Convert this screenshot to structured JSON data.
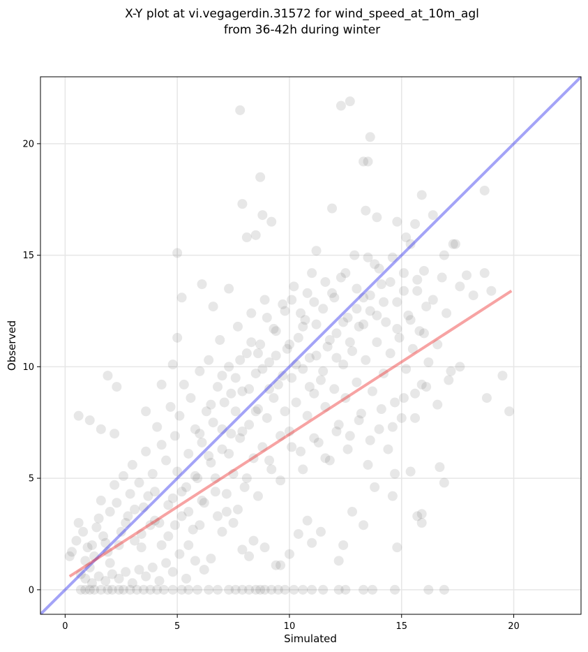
{
  "chart_data": {
    "type": "scatter",
    "title": [
      "X-Y plot at vi.vegagerdin.31572 for wind_speed_at_10m_agl",
      "from 36-42h during winter"
    ],
    "xlabel": "Simulated",
    "ylabel": "Observed",
    "xlim": [
      -1.1,
      23
    ],
    "ylim": [
      -1.1,
      23
    ],
    "xticks": [
      0,
      5,
      10,
      15,
      20
    ],
    "yticks": [
      0,
      5,
      10,
      15,
      20
    ],
    "grid": true,
    "marker_color": "#444444",
    "marker_alpha": 0.13,
    "points": [
      [
        0.3,
        1.7
      ],
      [
        0.2,
        1.5
      ],
      [
        0.5,
        2.2
      ],
      [
        0.6,
        3.0
      ],
      [
        0.8,
        2.6
      ],
      [
        0.9,
        1.3
      ],
      [
        1.1,
        1.0
      ],
      [
        1.2,
        2.0
      ],
      [
        1.4,
        2.8
      ],
      [
        1.5,
        3.2
      ],
      [
        1.6,
        4.0
      ],
      [
        1.8,
        2.1
      ],
      [
        1.9,
        1.7
      ],
      [
        2.0,
        3.5
      ],
      [
        2.2,
        4.7
      ],
      [
        2.3,
        3.9
      ],
      [
        2.5,
        2.6
      ],
      [
        2.6,
        5.1
      ],
      [
        2.8,
        3.3
      ],
      [
        2.9,
        4.3
      ],
      [
        3.0,
        5.6
      ],
      [
        3.1,
        2.2
      ],
      [
        3.3,
        4.8
      ],
      [
        3.4,
        1.9
      ],
      [
        3.5,
        3.7
      ],
      [
        3.6,
        6.2
      ],
      [
        3.8,
        2.9
      ],
      [
        3.9,
        5.2
      ],
      [
        4.0,
        4.4
      ],
      [
        4.1,
        7.3
      ],
      [
        4.2,
        3.0
      ],
      [
        4.3,
        6.5
      ],
      [
        4.5,
        5.8
      ],
      [
        4.6,
        2.4
      ],
      [
        4.7,
        8.2
      ],
      [
        4.8,
        4.1
      ],
      [
        4.9,
        6.9
      ],
      [
        5.0,
        5.3
      ],
      [
        5.1,
        7.8
      ],
      [
        5.2,
        3.3
      ],
      [
        5.3,
        9.2
      ],
      [
        5.4,
        4.6
      ],
      [
        5.5,
        6.1
      ],
      [
        5.6,
        8.6
      ],
      [
        5.7,
        2.7
      ],
      [
        5.8,
        7.2
      ],
      [
        5.9,
        5.0
      ],
      [
        6.0,
        9.8
      ],
      [
        6.1,
        6.6
      ],
      [
        6.2,
        3.9
      ],
      [
        6.3,
        8.0
      ],
      [
        6.4,
        10.3
      ],
      [
        6.5,
        5.7
      ],
      [
        6.6,
        7.5
      ],
      [
        6.7,
        4.4
      ],
      [
        6.8,
        9.1
      ],
      [
        6.9,
        11.2
      ],
      [
        7.0,
        6.3
      ],
      [
        7.1,
        8.4
      ],
      [
        7.2,
        3.5
      ],
      [
        7.3,
        10.0
      ],
      [
        7.4,
        7.0
      ],
      [
        7.5,
        5.2
      ],
      [
        7.6,
        9.5
      ],
      [
        7.7,
        11.8
      ],
      [
        7.8,
        6.8
      ],
      [
        7.9,
        8.9
      ],
      [
        8.0,
        4.6
      ],
      [
        8.1,
        10.6
      ],
      [
        8.2,
        7.4
      ],
      [
        8.3,
        12.4
      ],
      [
        8.4,
        5.9
      ],
      [
        8.5,
        9.7
      ],
      [
        8.6,
        8.1
      ],
      [
        8.7,
        11.0
      ],
      [
        8.8,
        6.4
      ],
      [
        8.9,
        13.0
      ],
      [
        9.0,
        7.7
      ],
      [
        9.1,
        10.2
      ],
      [
        9.2,
        5.4
      ],
      [
        9.3,
        8.6
      ],
      [
        9.4,
        11.6
      ],
      [
        9.5,
        9.2
      ],
      [
        9.6,
        6.9
      ],
      [
        9.7,
        12.8
      ],
      [
        9.8,
        8.0
      ],
      [
        9.9,
        10.8
      ],
      [
        10.0,
        7.1
      ],
      [
        10.1,
        9.5
      ],
      [
        10.2,
        13.6
      ],
      [
        10.3,
        8.4
      ],
      [
        10.4,
        11.3
      ],
      [
        10.5,
        6.2
      ],
      [
        10.6,
        9.9
      ],
      [
        10.7,
        12.1
      ],
      [
        10.8,
        7.8
      ],
      [
        10.9,
        10.4
      ],
      [
        11.0,
        14.2
      ],
      [
        11.1,
        8.8
      ],
      [
        11.2,
        11.9
      ],
      [
        11.3,
        6.6
      ],
      [
        11.4,
        9.4
      ],
      [
        11.5,
        12.6
      ],
      [
        11.6,
        8.2
      ],
      [
        11.7,
        10.9
      ],
      [
        11.8,
        5.8
      ],
      [
        11.9,
        13.3
      ],
      [
        12.0,
        9.0
      ],
      [
        12.1,
        11.5
      ],
      [
        12.2,
        7.4
      ],
      [
        12.3,
        14.0
      ],
      [
        12.4,
        10.1
      ],
      [
        12.5,
        8.6
      ],
      [
        12.6,
        12.2
      ],
      [
        12.7,
        6.9
      ],
      [
        12.8,
        10.7
      ],
      [
        12.9,
        15.0
      ],
      [
        13.0,
        9.3
      ],
      [
        13.1,
        11.8
      ],
      [
        13.2,
        7.9
      ],
      [
        13.3,
        13.1
      ],
      [
        13.4,
        10.3
      ],
      [
        13.5,
        5.6
      ],
      [
        13.6,
        12.5
      ],
      [
        13.7,
        8.9
      ],
      [
        13.8,
        14.6
      ],
      [
        13.9,
        11.1
      ],
      [
        14.0,
        7.2
      ],
      [
        14.1,
        13.7
      ],
      [
        14.2,
        9.7
      ],
      [
        14.3,
        12.0
      ],
      [
        14.4,
        6.3
      ],
      [
        14.5,
        10.6
      ],
      [
        14.6,
        14.9
      ],
      [
        14.7,
        8.4
      ],
      [
        14.8,
        12.9
      ],
      [
        14.9,
        11.3
      ],
      [
        15.0,
        7.7
      ],
      [
        15.1,
        13.4
      ],
      [
        15.2,
        9.9
      ],
      [
        15.3,
        12.3
      ],
      [
        15.4,
        15.5
      ],
      [
        15.5,
        10.8
      ],
      [
        15.6,
        8.8
      ],
      [
        15.7,
        13.9
      ],
      [
        15.8,
        11.6
      ],
      [
        15.9,
        9.2
      ],
      [
        16.0,
        14.3
      ],
      [
        16.1,
        12.7
      ],
      [
        16.2,
        10.2
      ],
      [
        16.4,
        13.0
      ],
      [
        16.6,
        11.0
      ],
      [
        16.8,
        14.0
      ],
      [
        17.0,
        12.4
      ],
      [
        17.2,
        9.8
      ],
      [
        17.4,
        15.5
      ],
      [
        17.6,
        13.6
      ],
      [
        17.9,
        14.1
      ],
      [
        18.2,
        13.2
      ],
      [
        18.7,
        14.2
      ],
      [
        19.0,
        13.4
      ],
      [
        19.5,
        9.6
      ],
      [
        19.8,
        8.0
      ],
      [
        18.8,
        8.6
      ],
      [
        18.7,
        17.9
      ],
      [
        16.7,
        5.5
      ],
      [
        16.9,
        4.8
      ],
      [
        15.9,
        3.0
      ],
      [
        15.9,
        3.4
      ],
      [
        15.7,
        3.3
      ],
      [
        14.8,
        1.9
      ],
      [
        14.6,
        4.2
      ],
      [
        14.7,
        5.2
      ],
      [
        15.4,
        5.3
      ],
      [
        13.8,
        4.6
      ],
      [
        13.3,
        2.9
      ],
      [
        12.8,
        3.5
      ],
      [
        12.4,
        2.0
      ],
      [
        12.2,
        1.3
      ],
      [
        11.4,
        2.6
      ],
      [
        11.0,
        2.1
      ],
      [
        10.4,
        2.5
      ],
      [
        10.8,
        3.1
      ],
      [
        10.0,
        1.6
      ],
      [
        9.6,
        1.1
      ],
      [
        9.4,
        1.1
      ],
      [
        8.9,
        1.9
      ],
      [
        8.4,
        2.2
      ],
      [
        8.2,
        1.5
      ],
      [
        7.9,
        1.8
      ],
      [
        7.5,
        3.0
      ],
      [
        7.0,
        2.6
      ],
      [
        6.5,
        1.4
      ],
      [
        6.2,
        0.9
      ],
      [
        5.8,
        1.3
      ],
      [
        5.4,
        0.5
      ],
      [
        5.1,
        1.6
      ],
      [
        4.8,
        0.8
      ],
      [
        4.5,
        1.2
      ],
      [
        4.2,
        0.4
      ],
      [
        3.9,
        1.0
      ],
      [
        3.6,
        0.6
      ],
      [
        3.3,
        0.9
      ],
      [
        3.0,
        0.3
      ],
      [
        2.7,
        0.8
      ],
      [
        2.4,
        0.5
      ],
      [
        2.1,
        0.7
      ],
      [
        1.8,
        0.4
      ],
      [
        1.5,
        0.6
      ],
      [
        1.2,
        0.3
      ],
      [
        0.9,
        0.5
      ],
      [
        0.7,
        0.7
      ],
      [
        0.6,
        7.8
      ],
      [
        1.1,
        7.6
      ],
      [
        1.6,
        7.2
      ],
      [
        1.9,
        9.6
      ],
      [
        2.3,
        9.1
      ],
      [
        2.2,
        7.0
      ],
      [
        3.6,
        8.0
      ],
      [
        4.3,
        9.2
      ],
      [
        4.8,
        10.1
      ],
      [
        5.0,
        11.3
      ],
      [
        5.2,
        13.1
      ],
      [
        5.0,
        15.1
      ],
      [
        6.1,
        13.7
      ],
      [
        6.6,
        12.7
      ],
      [
        7.3,
        13.5
      ],
      [
        7.8,
        21.5
      ],
      [
        7.9,
        17.3
      ],
      [
        8.1,
        15.8
      ],
      [
        8.5,
        15.9
      ],
      [
        8.7,
        18.5
      ],
      [
        8.8,
        16.8
      ],
      [
        9.2,
        16.5
      ],
      [
        11.2,
        15.2
      ],
      [
        11.9,
        17.1
      ],
      [
        12.3,
        21.7
      ],
      [
        12.7,
        21.9
      ],
      [
        13.3,
        19.2
      ],
      [
        13.5,
        19.2
      ],
      [
        13.6,
        20.3
      ],
      [
        13.4,
        17.0
      ],
      [
        13.9,
        16.7
      ],
      [
        14.8,
        16.5
      ],
      [
        15.2,
        15.8
      ],
      [
        15.6,
        16.4
      ],
      [
        15.9,
        17.7
      ],
      [
        16.4,
        16.8
      ],
      [
        16.9,
        15.0
      ],
      [
        17.3,
        15.5
      ],
      [
        0.7,
        0
      ],
      [
        0.9,
        0
      ],
      [
        1.1,
        0
      ],
      [
        1.3,
        0
      ],
      [
        1.6,
        0
      ],
      [
        1.9,
        0
      ],
      [
        2.1,
        0
      ],
      [
        2.4,
        0
      ],
      [
        2.6,
        0
      ],
      [
        2.9,
        0
      ],
      [
        3.2,
        0
      ],
      [
        3.5,
        0
      ],
      [
        3.8,
        0
      ],
      [
        4.1,
        0
      ],
      [
        4.4,
        0
      ],
      [
        4.8,
        0
      ],
      [
        5.2,
        0
      ],
      [
        5.5,
        0
      ],
      [
        5.9,
        0
      ],
      [
        6.4,
        0
      ],
      [
        6.8,
        0
      ],
      [
        7.3,
        0
      ],
      [
        7.6,
        0
      ],
      [
        7.9,
        0
      ],
      [
        8.2,
        0
      ],
      [
        8.5,
        0
      ],
      [
        8.7,
        0
      ],
      [
        8.9,
        0
      ],
      [
        9.2,
        0
      ],
      [
        9.5,
        0
      ],
      [
        9.8,
        0
      ],
      [
        10.2,
        0
      ],
      [
        10.6,
        0
      ],
      [
        11.0,
        0
      ],
      [
        11.5,
        0
      ],
      [
        12.2,
        0
      ],
      [
        12.5,
        0
      ],
      [
        13.3,
        0
      ],
      [
        13.7,
        0
      ],
      [
        14.7,
        0
      ],
      [
        16.2,
        0
      ],
      [
        16.9,
        0
      ],
      [
        1.0,
        1.9
      ],
      [
        1.3,
        1.5
      ],
      [
        1.7,
        2.4
      ],
      [
        2.0,
        1.2
      ],
      [
        2.4,
        2.0
      ],
      [
        2.7,
        3.0
      ],
      [
        3.1,
        3.6
      ],
      [
        3.4,
        2.5
      ],
      [
        3.7,
        4.2
      ],
      [
        4.0,
        3.1
      ],
      [
        4.3,
        2.0
      ],
      [
        4.6,
        3.8
      ],
      [
        4.9,
        2.9
      ],
      [
        5.2,
        4.4
      ],
      [
        5.5,
        3.5
      ],
      [
        5.8,
        5.1
      ],
      [
        6.1,
        4.0
      ],
      [
        6.4,
        6.0
      ],
      [
        6.7,
        5.0
      ],
      [
        7.0,
        7.2
      ],
      [
        7.3,
        6.1
      ],
      [
        7.6,
        8.0
      ],
      [
        7.9,
        7.1
      ],
      [
        8.2,
        9.0
      ],
      [
        8.5,
        8.0
      ],
      [
        8.8,
        9.9
      ],
      [
        9.1,
        9.0
      ],
      [
        9.4,
        10.5
      ],
      [
        9.7,
        9.6
      ],
      [
        10.0,
        11.0
      ],
      [
        10.3,
        10.1
      ],
      [
        10.6,
        11.8
      ],
      [
        10.9,
        9.1
      ],
      [
        11.2,
        10.5
      ],
      [
        11.5,
        9.8
      ],
      [
        11.8,
        11.2
      ],
      [
        12.1,
        10.4
      ],
      [
        12.4,
        12.0
      ],
      [
        12.7,
        11.1
      ],
      [
        13.0,
        12.6
      ],
      [
        13.3,
        11.9
      ],
      [
        13.6,
        13.2
      ],
      [
        13.9,
        12.3
      ],
      [
        14.2,
        12.9
      ],
      [
        14.5,
        13.8
      ],
      [
        14.8,
        11.7
      ],
      [
        15.1,
        14.2
      ],
      [
        15.4,
        12.1
      ],
      [
        15.7,
        13.4
      ],
      [
        16.0,
        11.5
      ],
      [
        6.0,
        7.0
      ],
      [
        6.5,
        8.3
      ],
      [
        7.0,
        9.6
      ],
      [
        7.4,
        8.8
      ],
      [
        7.8,
        10.3
      ],
      [
        8.3,
        11.1
      ],
      [
        8.6,
        10.6
      ],
      [
        9.0,
        12.2
      ],
      [
        9.3,
        11.7
      ],
      [
        9.8,
        12.5
      ],
      [
        10.1,
        13.0
      ],
      [
        10.5,
        12.4
      ],
      [
        10.8,
        13.3
      ],
      [
        11.1,
        12.9
      ],
      [
        11.6,
        13.8
      ],
      [
        12.0,
        13.1
      ],
      [
        12.5,
        14.2
      ],
      [
        13.0,
        13.5
      ],
      [
        13.5,
        14.9
      ],
      [
        14.0,
        14.4
      ],
      [
        5.5,
        2.0
      ],
      [
        6.0,
        2.9
      ],
      [
        6.8,
        3.3
      ],
      [
        7.2,
        4.3
      ],
      [
        7.7,
        3.6
      ],
      [
        8.1,
        5.0
      ],
      [
        8.6,
        4.2
      ],
      [
        9.1,
        5.8
      ],
      [
        9.6,
        4.9
      ],
      [
        10.1,
        6.4
      ],
      [
        10.6,
        5.4
      ],
      [
        11.1,
        6.8
      ],
      [
        11.6,
        5.9
      ],
      [
        12.1,
        7.1
      ],
      [
        12.6,
        6.3
      ],
      [
        13.1,
        7.6
      ],
      [
        13.6,
        6.7
      ],
      [
        14.1,
        8.1
      ],
      [
        14.6,
        7.3
      ],
      [
        15.1,
        8.6
      ],
      [
        15.6,
        7.7
      ],
      [
        16.1,
        9.1
      ],
      [
        16.6,
        8.3
      ],
      [
        17.1,
        9.4
      ],
      [
        17.6,
        10.0
      ]
    ],
    "reference_line": {
      "name": "1:1",
      "color": "#3333ee",
      "x": [
        -1.1,
        23
      ],
      "y": [
        -1.1,
        23
      ]
    },
    "fit_line": {
      "color": "#ee3333",
      "x": [
        0.2,
        19.9
      ],
      "y": [
        0.6,
        13.4
      ]
    }
  }
}
